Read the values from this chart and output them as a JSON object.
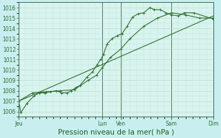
{
  "xlabel": "Pression niveau de la mer( hPa )",
  "ylim": [
    1005.5,
    1016.5
  ],
  "yticks": [
    1006,
    1007,
    1008,
    1009,
    1010,
    1011,
    1012,
    1013,
    1014,
    1015,
    1016
  ],
  "bg_color": "#c8eef0",
  "plot_bg_color": "#d8f4ee",
  "grid_color_minor": "#c0ddd8",
  "grid_color_major": "#99ccbb",
  "line_color": "#2d6e2d",
  "tick_label_color": "#2d6e2d",
  "xlabel_color": "#1a5c1a",
  "xtick_labels": [
    "Jeu",
    "Lun",
    "Ven",
    "Sam",
    "Dim"
  ],
  "xtick_positions": [
    0.0,
    3.0,
    3.67,
    5.5,
    7.0
  ],
  "vline_positions": [
    0.0,
    3.0,
    3.67,
    5.5,
    7.0
  ],
  "series1_x": [
    0.0,
    0.08,
    0.3,
    0.55,
    0.75,
    0.95,
    1.15,
    1.35,
    1.55,
    1.75,
    1.9,
    2.05,
    2.2,
    2.45,
    2.65,
    2.82,
    2.95,
    3.05,
    3.18,
    3.35,
    3.55,
    3.72,
    3.9,
    4.1,
    4.3,
    4.5,
    4.72,
    4.88,
    5.1,
    5.3,
    5.5,
    5.75,
    5.95,
    6.3,
    7.0
  ],
  "series1_y": [
    1007.0,
    1005.9,
    1006.8,
    1007.5,
    1007.8,
    1007.8,
    1007.9,
    1008.0,
    1007.8,
    1007.8,
    1008.0,
    1008.3,
    1008.5,
    1009.3,
    1009.8,
    1010.5,
    1011.0,
    1011.5,
    1012.5,
    1013.0,
    1013.3,
    1013.5,
    1014.2,
    1015.1,
    1015.4,
    1015.5,
    1016.0,
    1015.8,
    1015.8,
    1015.5,
    1015.3,
    1015.2,
    1015.5,
    1015.5,
    1014.9
  ],
  "series2_x": [
    0.0,
    0.5,
    1.0,
    1.5,
    2.0,
    2.5,
    2.8,
    3.0,
    3.3,
    3.67,
    4.0,
    4.5,
    5.0,
    5.5,
    6.0,
    6.5,
    7.0
  ],
  "series2_y": [
    1007.0,
    1007.8,
    1007.9,
    1008.0,
    1008.1,
    1009.0,
    1009.5,
    1010.2,
    1011.2,
    1012.0,
    1013.0,
    1014.2,
    1015.0,
    1015.5,
    1015.3,
    1015.0,
    1015.0
  ],
  "trend_x": [
    0.0,
    7.0
  ],
  "trend_y": [
    1007.0,
    1015.2
  ],
  "marker_size": 2.0,
  "linewidth": 0.8,
  "fontsize_tick": 5.5,
  "fontsize_xlabel": 7.5
}
